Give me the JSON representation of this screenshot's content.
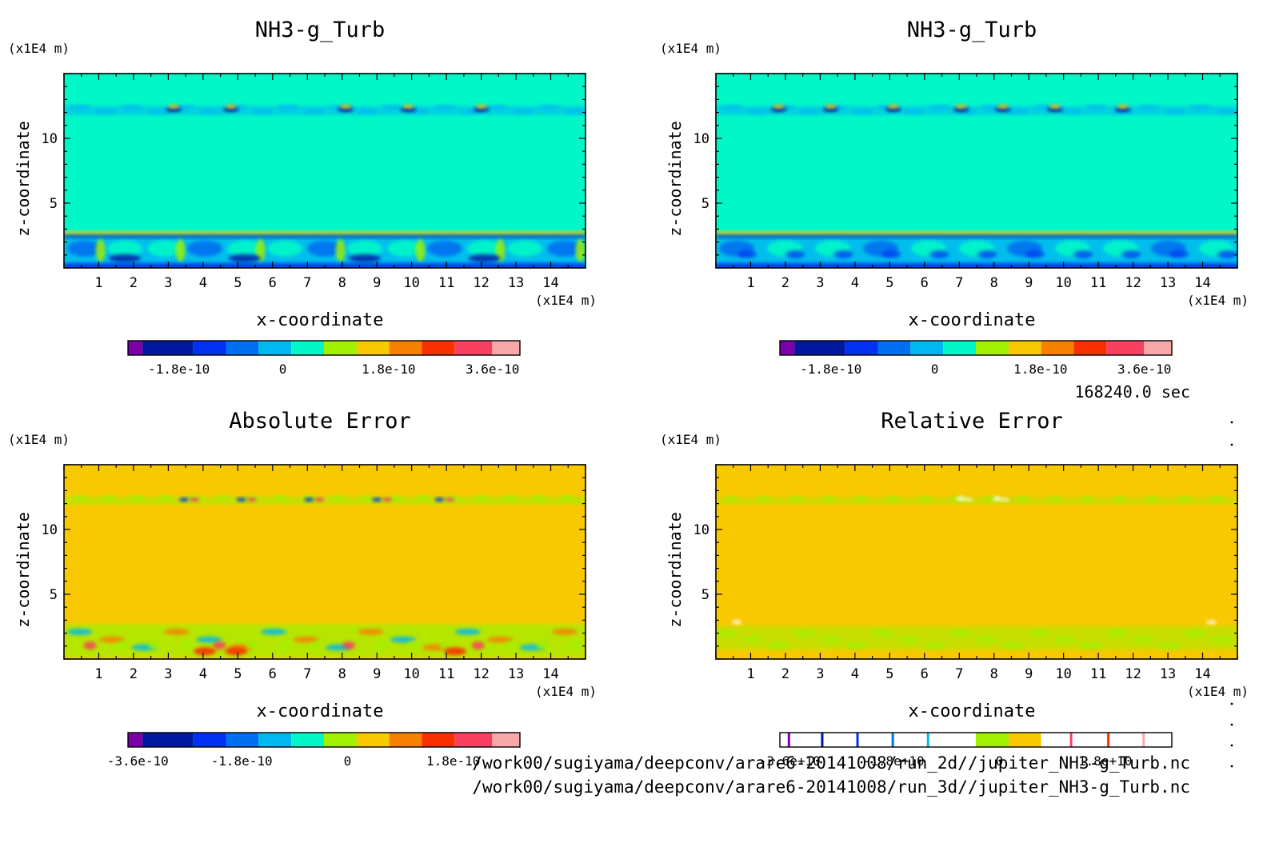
{
  "time_label": "168240.0 sec",
  "file_paths": [
    "/work00/sugiyama/deepconv/arare6-20141008/run_2d//jupiter_NH3-g_Turb.nc",
    "/work00/sugiyama/deepconv/arare6-20141008/run_3d//jupiter_NH3-g_Turb.nc"
  ],
  "chart_data": [
    {
      "type": "heatmap",
      "title": "NH3-g_Turb",
      "xlabel": "x-coordinate",
      "ylabel": "z-coordinate",
      "x_unit": "(x1E4 m)",
      "y_unit": "(x1E4 m)",
      "xlim": [
        0,
        15
      ],
      "ylim": [
        0,
        15
      ],
      "x_ticks": [
        "1",
        "2",
        "3",
        "4",
        "5",
        "6",
        "7",
        "8",
        "9",
        "10",
        "11",
        "12",
        "13",
        "14"
      ],
      "y_ticks": [
        "5",
        "10"
      ],
      "background": "#00f8c8",
      "colorbar": {
        "colors": [
          "#7b00a8",
          "#0018a0",
          "#0030f0",
          "#0070f0",
          "#00b8f0",
          "#00f8c8",
          "#a0f000",
          "#f8c800",
          "#f88000",
          "#f83000",
          "#f84060",
          "#f8a8a8"
        ],
        "tick_labels": [
          "-1.8e-10",
          "0",
          "1.8e-10",
          "3.6e-10"
        ]
      }
    },
    {
      "type": "heatmap",
      "title": "NH3-g_Turb",
      "xlabel": "x-coordinate",
      "ylabel": "z-coordinate",
      "x_unit": "(x1E4 m)",
      "y_unit": "(x1E4 m)",
      "xlim": [
        0,
        15
      ],
      "ylim": [
        0,
        15
      ],
      "x_ticks": [
        "1",
        "2",
        "3",
        "4",
        "5",
        "6",
        "7",
        "8",
        "9",
        "10",
        "11",
        "12",
        "13",
        "14"
      ],
      "y_ticks": [
        "5",
        "10"
      ],
      "background": "#00f8c8",
      "colorbar": {
        "colors": [
          "#7b00a8",
          "#0018a0",
          "#0030f0",
          "#0070f0",
          "#00b8f0",
          "#00f8c8",
          "#a0f000",
          "#f8c800",
          "#f88000",
          "#f83000",
          "#f84060",
          "#f8a8a8"
        ],
        "tick_labels": [
          "-1.8e-10",
          "0",
          "1.8e-10",
          "3.6e-10"
        ]
      }
    },
    {
      "type": "heatmap",
      "title": "Absolute Error",
      "xlabel": "x-coordinate",
      "ylabel": "z-coordinate",
      "x_unit": "(x1E4 m)",
      "y_unit": "(x1E4 m)",
      "xlim": [
        0,
        15
      ],
      "ylim": [
        0,
        15
      ],
      "x_ticks": [
        "1",
        "2",
        "3",
        "4",
        "5",
        "6",
        "7",
        "8",
        "9",
        "10",
        "11",
        "12",
        "13",
        "14"
      ],
      "y_ticks": [
        "5",
        "10"
      ],
      "background": "#f8c800",
      "colorbar": {
        "colors": [
          "#7b00a8",
          "#0018a0",
          "#0030f0",
          "#0070f0",
          "#00b8f0",
          "#00f8c8",
          "#a0f000",
          "#f8c800",
          "#f88000",
          "#f83000",
          "#f84060",
          "#f8a8a8"
        ],
        "tick_labels": [
          "-3.6e-10",
          "-1.8e-10",
          "0",
          "1.8e-10"
        ]
      }
    },
    {
      "type": "heatmap",
      "title": "Relative Error",
      "xlabel": "x-coordinate",
      "ylabel": "z-coordinate",
      "x_unit": "(x1E4 m)",
      "y_unit": "(x1E4 m)",
      "xlim": [
        0,
        15
      ],
      "ylim": [
        0,
        15
      ],
      "x_ticks": [
        "1",
        "2",
        "3",
        "4",
        "5",
        "6",
        "7",
        "8",
        "9",
        "10",
        "11",
        "12",
        "13",
        "14"
      ],
      "y_ticks": [
        "5",
        "10"
      ],
      "background": "#f8c800",
      "colorbar": {
        "colors": [
          "#ffffff",
          "#ffffff",
          "#ffffff",
          "#ffffff",
          "#ffffff",
          "#ffffff",
          "#a0f000",
          "#f8c800",
          "#ffffff",
          "#ffffff",
          "#ffffff",
          "#ffffff"
        ],
        "tick_labels": [
          "-3.6e+10",
          "-1.8e+10",
          "0",
          "1.8e+10"
        ]
      }
    }
  ]
}
